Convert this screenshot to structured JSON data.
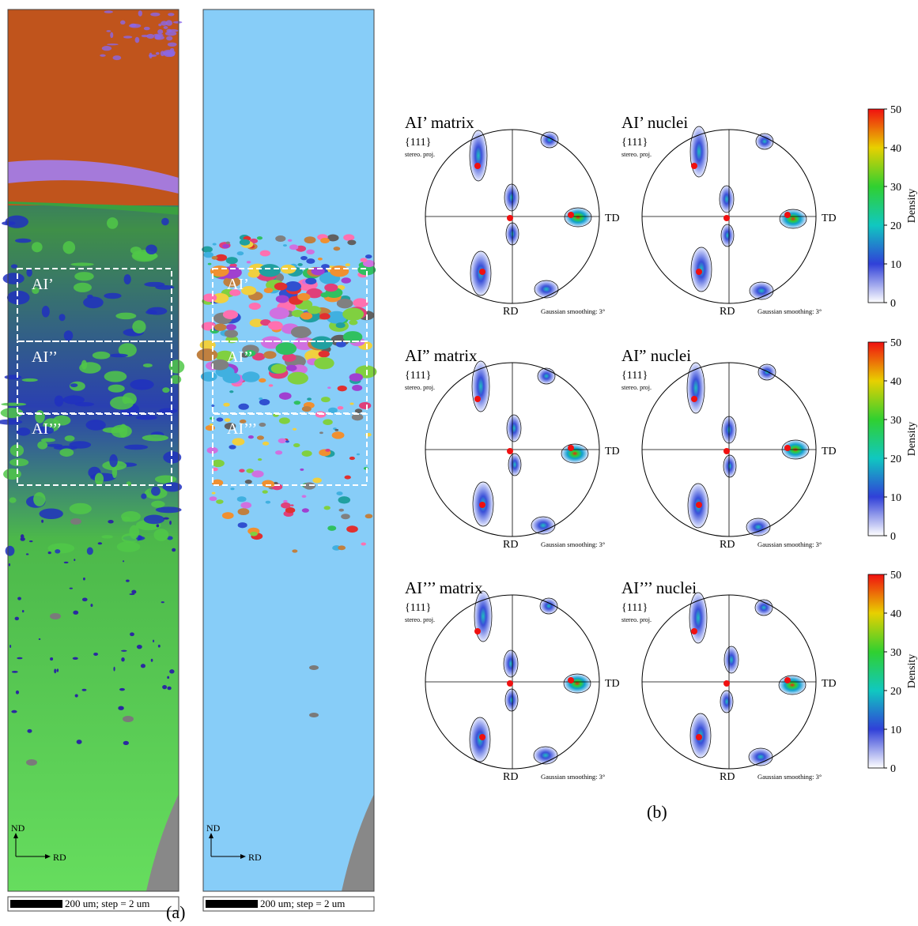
{
  "panel_a": {
    "label": "(a)",
    "maps": [
      {
        "regions": [
          "AI’",
          "AI’’",
          "AI’’’"
        ],
        "axes": {
          "nd": "ND",
          "rd": "RD"
        },
        "scale_bar": "200 um; step = 2 um"
      },
      {
        "regions": [
          "AI’",
          "AI’’",
          "AI’’’"
        ],
        "axes": {
          "nd": "ND",
          "rd": "RD"
        },
        "scale_bar": "200 um; step = 2 um"
      }
    ]
  },
  "panel_b": {
    "label": "(b)",
    "rows": [
      {
        "plots": [
          {
            "title": "AI’ matrix",
            "plane": "{111}",
            "projection": "stereo. proj.",
            "rd": "RD",
            "td": "TD",
            "smoothing": "Gaussian smoothing: 3°"
          },
          {
            "title": "AI’ nuclei",
            "plane": "{111}",
            "projection": "stereo. proj.",
            "rd": "RD",
            "td": "TD",
            "smoothing": "Gaussian smoothing: 3°"
          }
        ],
        "colorbar": {
          "label": "Density",
          "ticks": [
            0,
            10,
            20,
            30,
            40,
            50
          ]
        }
      },
      {
        "plots": [
          {
            "title": "AI” matrix",
            "plane": "{111}",
            "projection": "stereo. proj.",
            "rd": "RD",
            "td": "TD",
            "smoothing": "Gaussian smoothing: 3°"
          },
          {
            "title": "AI” nuclei",
            "plane": "{111}",
            "projection": "stereo. proj.",
            "rd": "RD",
            "td": "TD",
            "smoothing": "Gaussian smoothing: 3°"
          }
        ],
        "colorbar": {
          "label": "Density",
          "ticks": [
            0,
            10,
            20,
            30,
            40,
            50
          ]
        }
      },
      {
        "plots": [
          {
            "title": "AI’’’ matrix",
            "plane": "{111}",
            "projection": "stereo. proj.",
            "rd": "RD",
            "td": "TD",
            "smoothing": "Gaussian smoothing: 3°"
          },
          {
            "title": "AI’’’ nuclei",
            "plane": "{111}",
            "projection": "stereo. proj.",
            "rd": "RD",
            "td": "TD",
            "smoothing": "Gaussian smoothing: 3°"
          }
        ],
        "colorbar": {
          "label": "Density",
          "ticks": [
            0,
            10,
            20,
            30,
            40,
            50
          ]
        }
      }
    ]
  }
}
